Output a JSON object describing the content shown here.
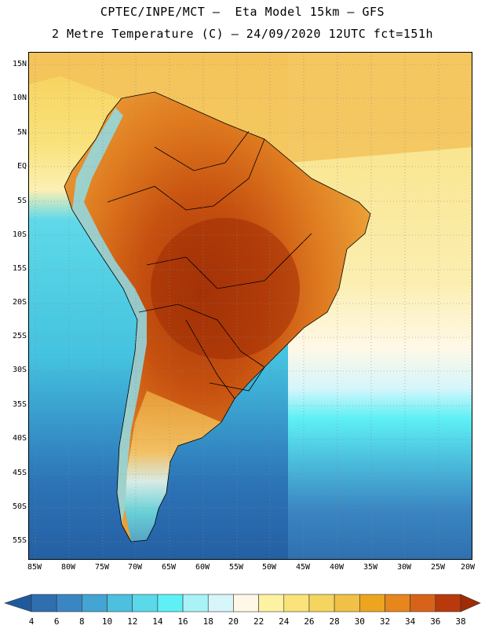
{
  "header": {
    "line1": "CPTEC/INPE/MCT –  Eta Model 15km – GFS",
    "line2": "2 Metre Temperature (C) – 24/09/2020 12UTC fct=151h"
  },
  "map": {
    "lat_labels": [
      "15N",
      "10N",
      "5N",
      "EQ",
      "5S",
      "10S",
      "15S",
      "20S",
      "25S",
      "30S",
      "35S",
      "40S",
      "45S",
      "50S",
      "55S"
    ],
    "lon_labels": [
      "85W",
      "80W",
      "75W",
      "70W",
      "65W",
      "60W",
      "55W",
      "50W",
      "45W",
      "40W",
      "35W",
      "30W",
      "25W",
      "20W"
    ]
  },
  "legend": {
    "labels": [
      "4",
      "6",
      "8",
      "10",
      "12",
      "14",
      "16",
      "18",
      "20",
      "22",
      "24",
      "26",
      "28",
      "30",
      "32",
      "34",
      "36",
      "38"
    ],
    "colors": [
      "#1f5a9c",
      "#2f6fb0",
      "#3a86c2",
      "#44a4d3",
      "#4cc0de",
      "#5bd8ea",
      "#5ef0f5",
      "#a9f3f6",
      "#d6f6fb",
      "#fff8e6",
      "#fdf2a2",
      "#f9e37a",
      "#f5d45f",
      "#f0c146",
      "#eda51f",
      "#e6861d",
      "#d7631a",
      "#b83a0c",
      "#a02b06"
    ]
  }
}
